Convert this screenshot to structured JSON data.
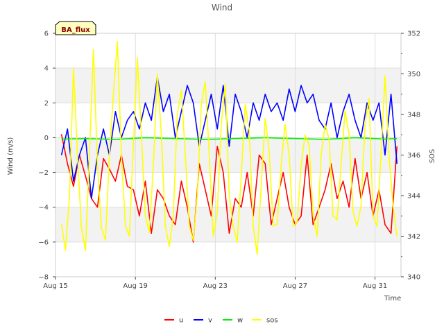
{
  "chart_data": {
    "type": "line",
    "title": "Wind",
    "xlabel": "Time",
    "ylabel": "Wind (m/s)",
    "y2label": "SOS",
    "annotation": "BA_flux",
    "x_unit": "days since Aug 15",
    "xlim": [
      0,
      17.3
    ],
    "ylim": [
      -8,
      6
    ],
    "y2lim": [
      340,
      352
    ],
    "x_ticks": [
      {
        "value": 0,
        "label": "Aug 15"
      },
      {
        "value": 4,
        "label": "Aug 19"
      },
      {
        "value": 8,
        "label": "Aug 23"
      },
      {
        "value": 12,
        "label": "Aug 27"
      },
      {
        "value": 16,
        "label": "Aug 31"
      }
    ],
    "y_ticks": [
      -8,
      -6,
      -4,
      -2,
      0,
      2,
      4,
      6
    ],
    "y_tick_labels": [
      "−8",
      "−6",
      "−4",
      "−2",
      "0",
      "2",
      "4",
      "6"
    ],
    "y2_ticks": [
      340,
      342,
      344,
      346,
      348,
      350,
      352
    ],
    "y2_tick_labels": [
      "340",
      "342",
      "344",
      "346",
      "348",
      "350",
      "352"
    ],
    "legend_position": "bottom-center",
    "series": [
      {
        "name": "u",
        "color": "#ff0000",
        "axis": "left",
        "x": [
          0.3,
          0.6,
          0.9,
          1.2,
          1.5,
          1.8,
          2.1,
          2.4,
          2.7,
          3.0,
          3.3,
          3.6,
          3.9,
          4.2,
          4.5,
          4.8,
          5.1,
          5.4,
          5.7,
          6.0,
          6.3,
          6.6,
          6.9,
          7.2,
          7.5,
          7.8,
          8.1,
          8.4,
          8.7,
          9.0,
          9.3,
          9.6,
          9.9,
          10.2,
          10.5,
          10.8,
          11.1,
          11.4,
          11.7,
          12.0,
          12.3,
          12.6,
          12.9,
          13.2,
          13.5,
          13.8,
          14.1,
          14.4,
          14.7,
          15.0,
          15.3,
          15.6,
          15.9,
          16.2,
          16.5,
          16.8,
          17.1
        ],
        "values": [
          0.2,
          -1.5,
          -2.8,
          -1.0,
          -2.2,
          -3.5,
          -4.0,
          -1.2,
          -1.8,
          -2.5,
          -1.0,
          -2.8,
          -3.0,
          -4.5,
          -2.5,
          -5.5,
          -3.0,
          -3.5,
          -4.5,
          -5.0,
          -2.5,
          -4.0,
          -6.0,
          -1.5,
          -3.0,
          -4.5,
          -0.5,
          -2.0,
          -5.5,
          -3.5,
          -4.0,
          -2.0,
          -4.5,
          -1.0,
          -1.5,
          -5.0,
          -3.5,
          -2.0,
          -4.0,
          -5.0,
          -4.5,
          -1.0,
          -5.0,
          -4.0,
          -3.0,
          -1.5,
          -3.5,
          -2.5,
          -4.0,
          -1.2,
          -3.5,
          -2.0,
          -4.5,
          -3.0,
          -5.0,
          -5.5,
          -0.5
        ]
      },
      {
        "name": "v",
        "color": "#0000ff",
        "axis": "left",
        "x": [
          0.3,
          0.6,
          0.9,
          1.2,
          1.5,
          1.8,
          2.1,
          2.4,
          2.7,
          3.0,
          3.3,
          3.6,
          3.9,
          4.2,
          4.5,
          4.8,
          5.1,
          5.4,
          5.7,
          6.0,
          6.3,
          6.6,
          6.9,
          7.2,
          7.5,
          7.8,
          8.1,
          8.4,
          8.7,
          9.0,
          9.3,
          9.6,
          9.9,
          10.2,
          10.5,
          10.8,
          11.1,
          11.4,
          11.7,
          12.0,
          12.3,
          12.6,
          12.9,
          13.2,
          13.5,
          13.8,
          14.1,
          14.4,
          14.7,
          15.0,
          15.3,
          15.6,
          15.9,
          16.2,
          16.5,
          16.8,
          17.1
        ],
        "values": [
          -1.0,
          0.5,
          -2.5,
          -1.0,
          0.0,
          -3.5,
          -1.0,
          0.5,
          -1.0,
          1.5,
          0.0,
          1.0,
          1.5,
          0.5,
          2.0,
          1.0,
          3.5,
          1.5,
          2.5,
          0.0,
          1.5,
          3.0,
          2.0,
          -0.5,
          1.0,
          2.5,
          0.5,
          3.0,
          -0.5,
          2.5,
          1.5,
          0.0,
          2.0,
          1.0,
          2.5,
          1.5,
          2.0,
          1.0,
          2.8,
          1.5,
          3.0,
          2.0,
          2.5,
          1.0,
          0.5,
          2.0,
          0.0,
          1.5,
          2.5,
          1.0,
          0.0,
          2.0,
          1.0,
          2.0,
          -1.0,
          2.5,
          -1.5
        ]
      },
      {
        "name": "w",
        "color": "#00ee00",
        "axis": "left",
        "x": [
          0.3,
          1.5,
          3.0,
          4.5,
          6.0,
          7.5,
          9.0,
          10.5,
          12.0,
          13.5,
          15.0,
          16.5,
          17.1
        ],
        "values": [
          -0.08,
          -0.05,
          -0.1,
          0.0,
          -0.05,
          -0.1,
          -0.05,
          0.0,
          -0.05,
          -0.1,
          0.0,
          -0.08,
          -0.05
        ]
      },
      {
        "name": "sos",
        "color": "#ffff00",
        "axis": "right",
        "x": [
          0.3,
          0.5,
          0.7,
          0.9,
          1.1,
          1.3,
          1.5,
          1.7,
          1.9,
          2.1,
          2.3,
          2.5,
          2.7,
          2.9,
          3.1,
          3.3,
          3.5,
          3.7,
          3.9,
          4.1,
          4.3,
          4.5,
          4.7,
          4.9,
          5.1,
          5.3,
          5.5,
          5.7,
          5.9,
          6.1,
          6.3,
          6.5,
          6.7,
          6.9,
          7.1,
          7.3,
          7.5,
          7.7,
          7.9,
          8.1,
          8.3,
          8.5,
          8.7,
          8.9,
          9.1,
          9.3,
          9.5,
          9.7,
          9.9,
          10.1,
          10.3,
          10.5,
          10.7,
          10.9,
          11.1,
          11.3,
          11.5,
          11.7,
          11.9,
          12.1,
          12.3,
          12.5,
          12.7,
          12.9,
          13.1,
          13.3,
          13.5,
          13.7,
          13.9,
          14.1,
          14.3,
          14.5,
          14.7,
          14.9,
          15.1,
          15.3,
          15.5,
          15.7,
          15.9,
          16.1,
          16.3,
          16.5,
          16.7,
          16.9,
          17.1
        ],
        "values": [
          342.6,
          341.3,
          344.0,
          350.3,
          346.0,
          342.4,
          341.3,
          346.0,
          351.2,
          345.5,
          342.4,
          341.8,
          346.0,
          349.0,
          351.6,
          346.0,
          342.5,
          342.0,
          346.5,
          350.8,
          347.0,
          343.0,
          342.2,
          345.5,
          350.0,
          347.0,
          342.5,
          341.5,
          343.0,
          348.0,
          349.2,
          346.0,
          342.5,
          341.8,
          344.0,
          348.5,
          349.6,
          346.0,
          342.0,
          343.2,
          347.5,
          349.5,
          344.0,
          342.5,
          341.7,
          345.0,
          348.5,
          347.2,
          342.5,
          341.1,
          344.5,
          347.8,
          346.2,
          342.5,
          342.6,
          345.5,
          347.5,
          346.0,
          342.5,
          342.7,
          345.5,
          347.0,
          346.5,
          343.0,
          342.0,
          346.0,
          347.5,
          346.8,
          343.0,
          342.8,
          345.5,
          348.2,
          347.0,
          343.2,
          342.5,
          343.5,
          347.5,
          348.8,
          343.0,
          342.5,
          346.0,
          349.9,
          346.0,
          343.5,
          342.0
        ]
      }
    ]
  }
}
